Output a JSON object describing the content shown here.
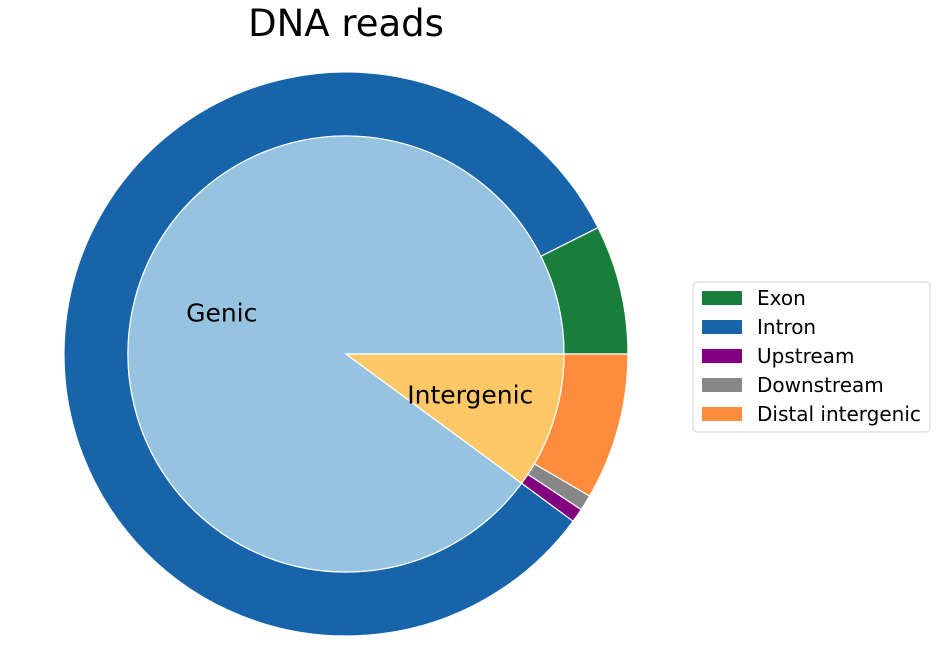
{
  "chart_data": {
    "type": "pie",
    "variant": "nested-donut",
    "title": "DNA reads",
    "start_angle_deg": 0,
    "direction": "counterclockwise",
    "inner": {
      "categories": [
        "Genic",
        "Intergenic"
      ],
      "values": [
        89.9,
        10.1
      ],
      "colors": [
        "#96c3e0",
        "#fec866"
      ]
    },
    "outer": {
      "categories": [
        "Exon",
        "Intron",
        "Upstream",
        "Downstream",
        "Distal intergenic"
      ],
      "values": [
        7.4,
        82.5,
        0.8,
        0.9,
        8.4
      ],
      "colors": [
        "#177f3b",
        "#1764ab",
        "#800080",
        "#878787",
        "#fd8c3c"
      ]
    },
    "legend": {
      "placement": "right",
      "entries": [
        "Exon",
        "Intron",
        "Upstream",
        "Downstream",
        "Distal intergenic"
      ]
    }
  }
}
